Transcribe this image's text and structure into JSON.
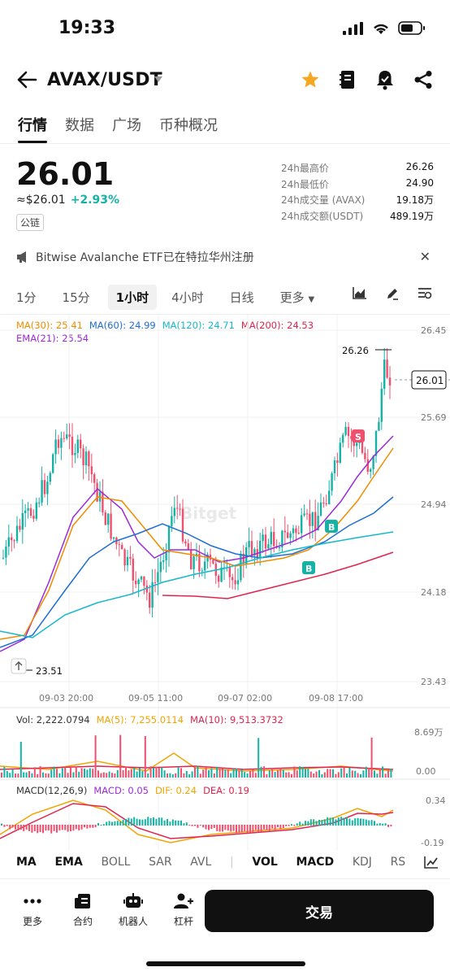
{
  "status_bar": {
    "time": "19:33"
  },
  "header": {
    "pair": "AVAX/USDT"
  },
  "tabs": [
    "行情",
    "数据",
    "广场",
    "币种概况"
  ],
  "ticker": {
    "price": "26.01",
    "usd": "≈$26.01",
    "change": "+2.93%",
    "chain": "公链",
    "stats": [
      {
        "k": "24h最高价",
        "v": "26.26"
      },
      {
        "k": "24h最低价",
        "v": "24.90"
      },
      {
        "k": "24h成交量 (AVAX)",
        "v": "19.18万"
      },
      {
        "k": "24h成交额(USDT)",
        "v": "489.19万"
      }
    ]
  },
  "news": {
    "text": "Bitwise Avalanche ETF已在特拉华州注册"
  },
  "intervals": {
    "items": [
      "1分",
      "15分",
      "1小时",
      "4小时",
      "日线",
      "更多"
    ],
    "selected": "1小时"
  },
  "ma_legend": {
    "ma30": "MA(30): 25.41",
    "ma60": "MA(60): 24.99",
    "ma120": "MA(120): 24.71",
    "ma200": "MA(200): 24.53",
    "ema21": "EMA(21): 25.54"
  },
  "colors": {
    "up": "#14b3a5",
    "down": "#f0506e",
    "ma30": "#f08c00",
    "ma60": "#1f6ed4",
    "ma120": "#16b8cc",
    "ma200": "#e0244e",
    "ema21": "#9c2ad9"
  },
  "chart_data": {
    "type": "line",
    "y_ticks": [
      "26.45",
      "25.69",
      "24.94",
      "24.18",
      "23.43"
    ],
    "x_ticks": [
      "09-03 20:00",
      "09-05 11:00",
      "09-07 02:00",
      "09-08 17:00"
    ],
    "ylim": [
      23.43,
      26.45
    ],
    "last_price": "26.01",
    "high_label": "26.26",
    "low_label": "23.51",
    "watermark": "Bitget",
    "markers": [
      {
        "label": "S",
        "x": "09-08 21:00",
        "y": 25.65
      },
      {
        "label": "B",
        "x": "09-08 11:00",
        "y": 24.86
      },
      {
        "label": "B",
        "x": "09-08 09:00",
        "y": 24.42
      }
    ]
  },
  "volume": {
    "legend": {
      "vol": "Vol: 2,222.0794",
      "ma5": "MA(5): 7,255.0114",
      "ma10": "MA(10): 9,513.3732"
    },
    "y_ticks": [
      "8.69万",
      "0.00"
    ]
  },
  "macd": {
    "legend": {
      "params": "MACD(12,26,9)",
      "macd": "MACD: 0.05",
      "dif": "DIF: 0.24",
      "dea": "DEA: 0.19"
    },
    "y_ticks": [
      "0.34",
      "-0.19"
    ]
  },
  "indicator_tabs": [
    "MA",
    "EMA",
    "BOLL",
    "SAR",
    "AVL",
    "VOL",
    "MACD",
    "KDJ",
    "RS"
  ],
  "bottom_nav": [
    "更多",
    "合约",
    "机器人",
    "杠杆"
  ],
  "trade_button": "交易"
}
